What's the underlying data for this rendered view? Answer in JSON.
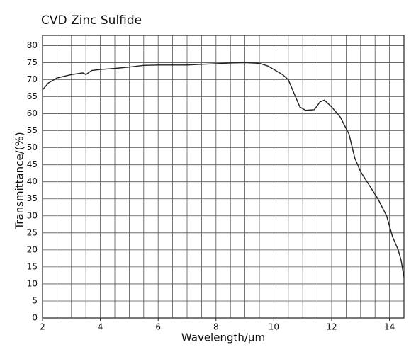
{
  "chart_data": {
    "type": "line",
    "title": "CVD Zinc Sulfide",
    "x_label": "Wavelength/µm",
    "y_label": "Transmittance/(%)",
    "x": [
      2,
      2.2,
      2.5,
      3,
      3.4,
      3.5,
      3.7,
      4,
      4.5,
      5,
      5.5,
      6,
      6.5,
      7,
      7.5,
      8,
      8.5,
      9,
      9.5,
      9.8,
      10,
      10.3,
      10.5,
      10.7,
      10.9,
      11.1,
      11.4,
      11.6,
      11.75,
      12,
      12.3,
      12.6,
      12.8,
      13,
      13.3,
      13.6,
      13.9,
      14,
      14.1,
      14.3,
      14.4,
      14.5
    ],
    "series": [
      {
        "name": "CVD Zinc Sulfide",
        "color": "#222222",
        "values": [
          67,
          69,
          70.5,
          71.5,
          72,
          71.5,
          72.7,
          73,
          73.3,
          73.7,
          74.2,
          74.3,
          74.3,
          74.3,
          74.5,
          74.7,
          74.9,
          75,
          74.8,
          74,
          73,
          71.5,
          70,
          66,
          62,
          61,
          61.2,
          63.5,
          64,
          62,
          59,
          54,
          47,
          43,
          39,
          35,
          30,
          27,
          24,
          20,
          17,
          12
        ]
      }
    ],
    "xlim": [
      2,
      14.5
    ],
    "xticks": [
      2,
      4,
      6,
      8,
      10,
      12,
      14
    ],
    "x_grid_lines": [
      2,
      2.5,
      3,
      3.5,
      4,
      4.5,
      5,
      5.5,
      6,
      6.5,
      7,
      7.5,
      8,
      8.5,
      9,
      9.5,
      10,
      10.5,
      11,
      11.5,
      12,
      12.5,
      13,
      13.5,
      14,
      14.5
    ],
    "ylim": [
      0,
      83
    ],
    "yticks": [
      0,
      5,
      10,
      15,
      20,
      25,
      30,
      35,
      40,
      45,
      50,
      55,
      60,
      65,
      70,
      75,
      80
    ],
    "grid": true
  }
}
